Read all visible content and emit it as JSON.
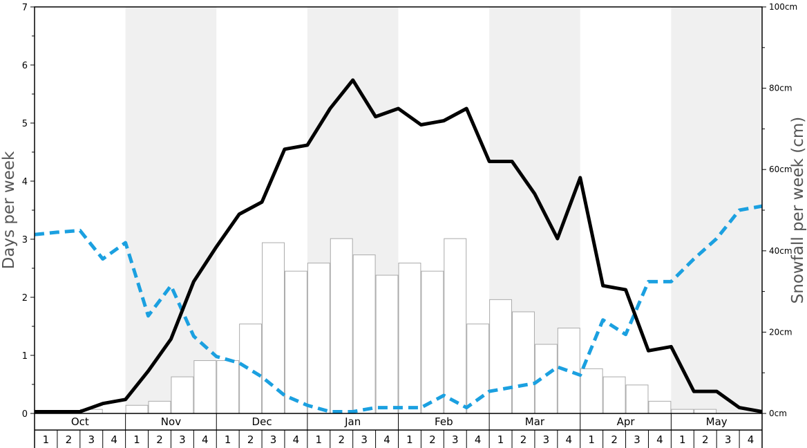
{
  "chart_data": {
    "type": "bar",
    "title": "",
    "ylabel": "Days per week",
    "y2label": "Snowfall per week (cm)",
    "ylim": [
      0,
      7
    ],
    "y2lim": [
      0,
      100
    ],
    "yticks": [
      "0",
      "1",
      "2",
      "3",
      "4",
      "5",
      "6",
      "7"
    ],
    "y2ticks": [
      "0cm",
      "20cm",
      "40cm",
      "60cm",
      "80cm",
      "100cm"
    ],
    "months": [
      "Oct",
      "Nov",
      "Dec",
      "Jan",
      "Feb",
      "Mar",
      "Apr",
      "May"
    ],
    "weeks": [
      "1",
      "2",
      "3",
      "4"
    ],
    "shaded_months": [
      false,
      true,
      false,
      true,
      false,
      true,
      false,
      true
    ],
    "colors": {
      "bars_fill": "#ffffff",
      "bars_stroke": "#aaaaaa",
      "solid_line": "#000000",
      "dashed_line": "#1ba0e0",
      "shade": "#f0f0f0",
      "axis": "#000000"
    },
    "series": [
      {
        "kind": "bars",
        "axis": "right",
        "values": [
          0,
          0,
          1,
          0,
          2,
          3,
          9,
          13,
          13,
          22,
          42,
          35,
          37,
          43,
          39,
          34,
          37,
          35,
          43,
          22,
          28,
          25,
          17,
          21,
          11,
          9,
          7,
          3,
          1,
          1,
          0,
          0
        ]
      },
      {
        "kind": "solid-line",
        "axis": "left",
        "values": [
          0.03,
          0.03,
          0.03,
          0.17,
          0.24,
          0.73,
          1.28,
          2.27,
          2.87,
          3.43,
          3.64,
          4.55,
          4.62,
          5.25,
          5.74,
          5.11,
          5.25,
          4.97,
          5.04,
          5.25,
          4.34,
          4.34,
          3.78,
          3.01,
          4.06,
          2.2,
          2.13,
          1.08,
          1.15,
          0.38,
          0.38,
          0.1,
          0.03
        ]
      },
      {
        "kind": "dashed-line",
        "axis": "left",
        "values": [
          3.08,
          3.12,
          3.15,
          2.66,
          2.94,
          1.68,
          2.2,
          1.33,
          0.98,
          0.87,
          0.63,
          0.31,
          0.14,
          0.03,
          0.03,
          0.1,
          0.1,
          0.1,
          0.31,
          0.1,
          0.38,
          0.45,
          0.52,
          0.8,
          0.66,
          1.61,
          1.36,
          2.27,
          2.27,
          2.66,
          3.01,
          3.5,
          3.57
        ]
      }
    ]
  }
}
